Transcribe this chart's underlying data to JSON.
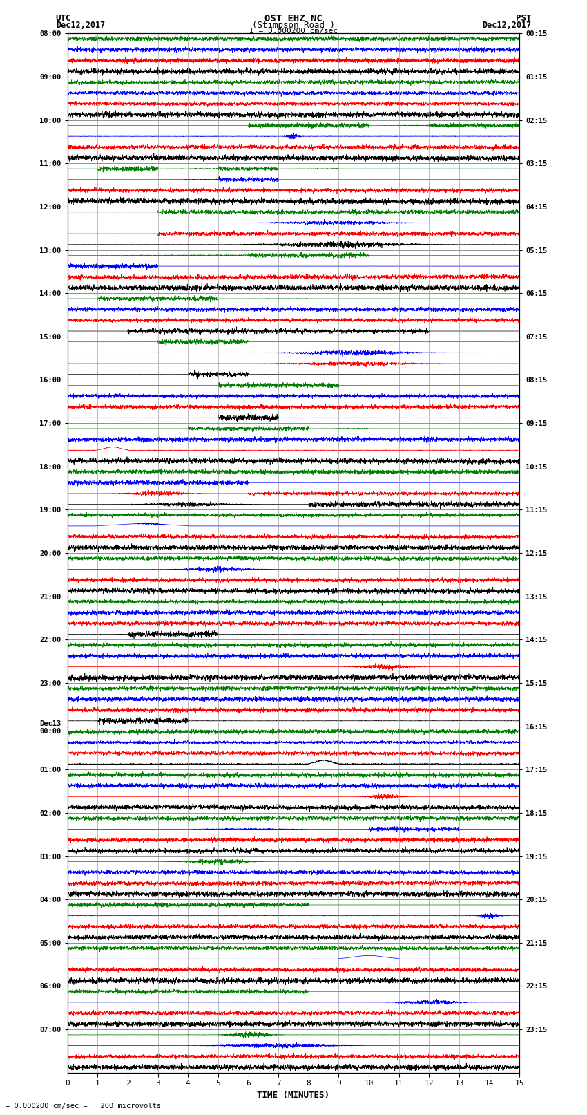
{
  "title_line1": "OST EHZ NC",
  "title_line2": "(Stimpson Road )",
  "title_line3": "I = 0.000200 cm/sec",
  "label_utc": "UTC",
  "label_pst": "PST",
  "label_date_left": "Dec12,2017",
  "label_date_right": "Dec12,2017",
  "xlabel": "TIME (MINUTES)",
  "scale_text": "= 0.000200 cm/sec =   200 microvolts",
  "bg_color": "#ffffff",
  "grid_color": "#888888",
  "trace_colors": [
    "black",
    "red",
    "blue",
    "green"
  ],
  "left_times": [
    "08:00",
    "09:00",
    "10:00",
    "11:00",
    "12:00",
    "13:00",
    "14:00",
    "15:00",
    "16:00",
    "17:00",
    "18:00",
    "19:00",
    "20:00",
    "21:00",
    "22:00",
    "23:00",
    "Dec13\n00:00",
    "01:00",
    "02:00",
    "03:00",
    "04:00",
    "05:00",
    "06:00",
    "07:00"
  ],
  "right_times": [
    "00:15",
    "01:15",
    "02:15",
    "03:15",
    "04:15",
    "05:15",
    "06:15",
    "07:15",
    "08:15",
    "09:15",
    "10:15",
    "11:15",
    "12:15",
    "13:15",
    "14:15",
    "15:15",
    "16:15",
    "17:15",
    "18:15",
    "19:15",
    "20:15",
    "21:15",
    "22:15",
    "23:15"
  ],
  "n_hours": 24,
  "xmin": 0,
  "xmax": 15,
  "seed": 12345
}
